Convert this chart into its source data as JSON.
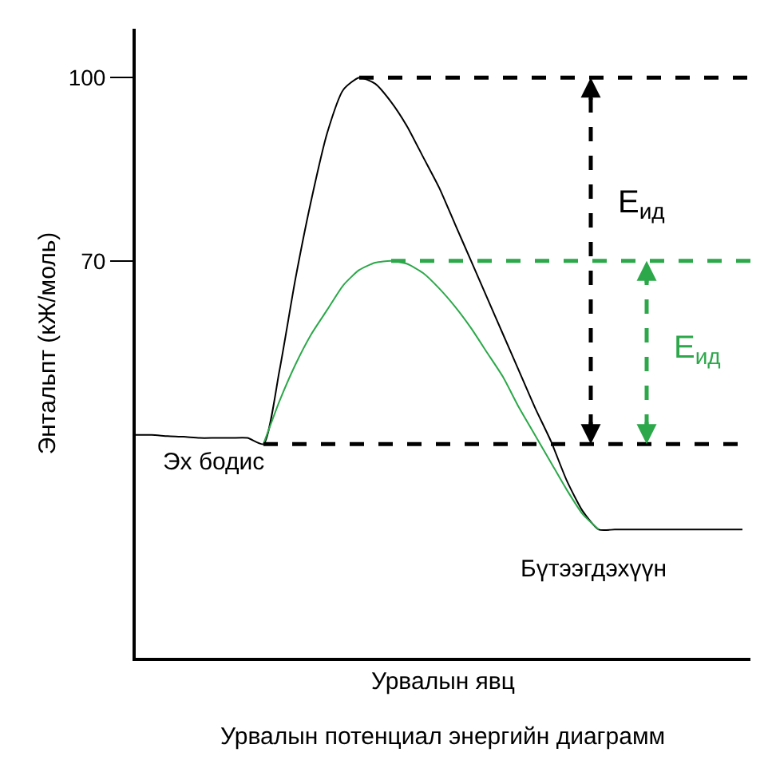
{
  "chart_data": {
    "type": "line",
    "xlabel": "Урвалын явц",
    "ylabel": "Энтальпт (кЖ/моль)",
    "categories": [
      null,
      null,
      null,
      null,
      null,
      null,
      null,
      null,
      null,
      null,
      null,
      null,
      null,
      null,
      null,
      null,
      null,
      null,
      null,
      null,
      null,
      null,
      null,
      null,
      null,
      null,
      null,
      null,
      null,
      null,
      null,
      null,
      null,
      null,
      null,
      null,
      null,
      null,
      null
    ],
    "series": [
      {
        "color": "#000000",
        "values": [
          41.5,
          41.5,
          41.3,
          41.2,
          41,
          41,
          41,
          41,
          40,
          52,
          67,
          80,
          91,
          98,
          100,
          99,
          96,
          92,
          87,
          82,
          76,
          70,
          64,
          58,
          52,
          46,
          40.5,
          34,
          29,
          26,
          26,
          26,
          26,
          26,
          26,
          26,
          26,
          26,
          26
        ]
      },
      {
        "color": "#2ca84a",
        "values": [
          null,
          null,
          null,
          null,
          null,
          null,
          null,
          null,
          40,
          47,
          53,
          58,
          62,
          66,
          68.5,
          69.7,
          70,
          69.5,
          68,
          65.5,
          62.5,
          59,
          55,
          51,
          46,
          41.5,
          37,
          32.5,
          28.5,
          26,
          null,
          null,
          null,
          null,
          null,
          null,
          null,
          null,
          null
        ]
      }
    ],
    "ylim": [
      5,
      108
    ],
    "yticks": [
      100,
      70
    ],
    "marker": "none",
    "line_style": "solid",
    "ref_lines": [
      {
        "axis": "y",
        "value": 100,
        "color": "#000000",
        "line_style": "dashed"
      },
      {
        "axis": "y",
        "value": 70,
        "color": "#2ca84a",
        "line_style": "dashed"
      },
      {
        "axis": "y",
        "value": 40,
        "color": "#000000",
        "line_style": "dashed"
      }
    ],
    "annotations": [
      "Эх бодис",
      "Бүтээгдэхүүн",
      "E$_{ид}$",
      "E$_{ид}$",
      "Урвалын потенциал энергийн диаграмм"
    ]
  }
}
